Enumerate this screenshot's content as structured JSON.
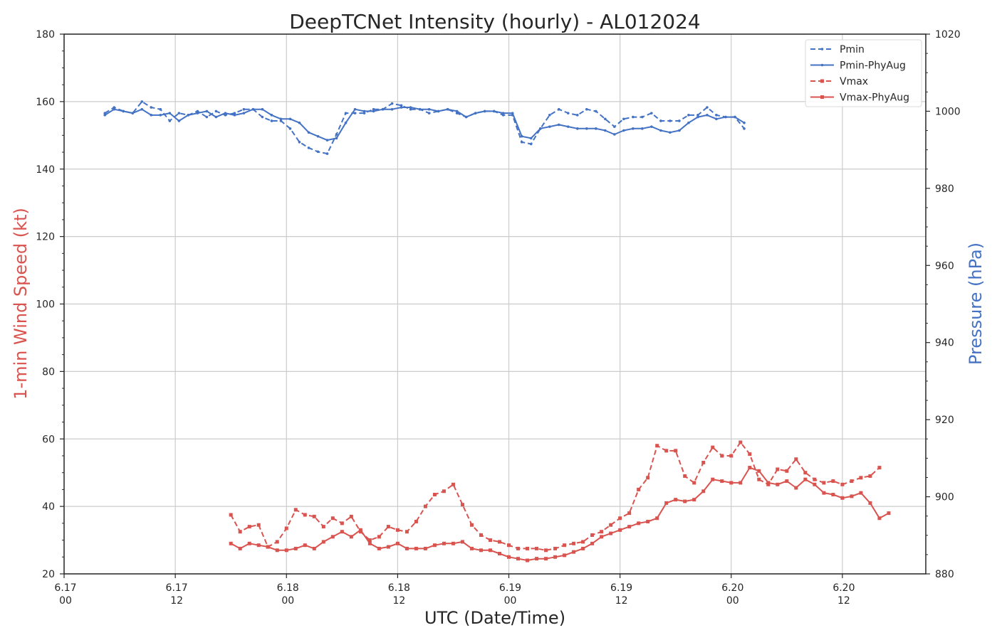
{
  "chart_data": {
    "type": "line",
    "title": "DeepTCNet Intensity (hourly) - AL012024",
    "xlabel": "UTC (Date/Time)",
    "ylabel_left": "1-min Wind Speed (kt)",
    "ylabel_right": "Pressure (hPa)",
    "xlim_hours": [
      0,
      93
    ],
    "ylim_left": [
      20,
      180
    ],
    "ylim_right": [
      880,
      1020
    ],
    "x_ticks": [
      {
        "hour": 0,
        "date": "6.17",
        "time": "00"
      },
      {
        "hour": 12,
        "date": "6.17",
        "time": "12"
      },
      {
        "hour": 24,
        "date": "6.18",
        "time": "00"
      },
      {
        "hour": 36,
        "date": "6.18",
        "time": "12"
      },
      {
        "hour": 48,
        "date": "6.19",
        "time": "00"
      },
      {
        "hour": 60,
        "date": "6.19",
        "time": "12"
      },
      {
        "hour": 72,
        "date": "6.20",
        "time": "00"
      },
      {
        "hour": 84,
        "date": "6.20",
        "time": "12"
      }
    ],
    "y_ticks_left": [
      20,
      40,
      60,
      80,
      100,
      120,
      140,
      160,
      180
    ],
    "y_ticks_right": [
      880,
      900,
      920,
      940,
      960,
      980,
      1000,
      1020
    ],
    "grid": true,
    "legend_position": "top-right",
    "colors": {
      "pressure": "#4472c4",
      "wind": "#d9534f"
    },
    "series": [
      {
        "name": "Pmin",
        "axis": "right",
        "style": "dashed",
        "marker": "dot",
        "color": "#4472c4",
        "x_start": 4.4,
        "values": [
          999.5,
          1001,
          1000,
          999.5,
          1002.5,
          1001,
          1000.5,
          997.5,
          999.5,
          999,
          1000,
          998.5,
          1000,
          999,
          999.5,
          1000.5,
          1000.5,
          998.5,
          997.5,
          997.5,
          995.5,
          992,
          990.5,
          989.5,
          989,
          994,
          999.5,
          999.5,
          999.5,
          1000.5,
          1000.5,
          1002,
          1001.5,
          1000.5,
          1000.5,
          999.5,
          1000,
          1000.5,
          999.5,
          998.5,
          999.5,
          1000,
          1000,
          999,
          999,
          992,
          991.5,
          995.5,
          999,
          1000.5,
          999.5,
          999,
          1000.5,
          1000,
          998,
          996,
          998,
          998.5,
          998.5,
          999.5,
          997.5,
          997.5,
          997.5,
          999,
          999,
          1001,
          999,
          998.5,
          998.5,
          995.5
        ]
      },
      {
        "name": "Pmin-PhyAug",
        "axis": "right",
        "style": "solid",
        "marker": "dot",
        "color": "#4472c4",
        "x_start": 4.4,
        "values": [
          999,
          1000.5,
          1000,
          999.5,
          1000.5,
          999,
          999,
          999.5,
          997.5,
          999,
          999.5,
          1000,
          998.5,
          999.5,
          999,
          999.5,
          1000.5,
          1000.5,
          999,
          998,
          998,
          997,
          994.5,
          993.5,
          992.5,
          993,
          997,
          1000.5,
          1000,
          1000,
          1000.5,
          1000.5,
          1001,
          1001,
          1000.5,
          1000.5,
          1000,
          1000.5,
          1000,
          998.5,
          999.5,
          1000,
          1000,
          999.5,
          999.5,
          993.5,
          993,
          995.5,
          996,
          996.5,
          996,
          995.5,
          995.5,
          995.5,
          995,
          994,
          995,
          995.5,
          995.5,
          996,
          995,
          994.5,
          995,
          997,
          998.5,
          999,
          998,
          998.5,
          998.5,
          997
        ]
      },
      {
        "name": "Vmax",
        "axis": "left",
        "style": "dashed",
        "marker": "square",
        "color": "#d9534f",
        "x_start": 18.0,
        "values": [
          37.5,
          32.5,
          34,
          34.5,
          28,
          29.5,
          33.5,
          39,
          37.5,
          37,
          34,
          36.5,
          35,
          37,
          32.5,
          30,
          31,
          34,
          33,
          32.5,
          35.5,
          40,
          43.5,
          44.5,
          46.5,
          40.5,
          34.5,
          31.5,
          30,
          29.5,
          28.5,
          27.5,
          27.5,
          27.5,
          27,
          27.5,
          28.5,
          29,
          29.5,
          31.5,
          32.5,
          34.5,
          36.5,
          38,
          45,
          48.5,
          58,
          56.5,
          56.5,
          49,
          47,
          53,
          57.5,
          55,
          55,
          59,
          55.5,
          48,
          46.5,
          51,
          50.5,
          54,
          50,
          48,
          47,
          47.5,
          46.5,
          47.5,
          48.5,
          49,
          51.5
        ]
      },
      {
        "name": "Vmax-PhyAug",
        "axis": "left",
        "style": "solid",
        "marker": "square",
        "color": "#d9534f",
        "x_start": 18.0,
        "values": [
          29,
          27.5,
          29,
          28.5,
          28,
          27,
          27,
          27.5,
          28.5,
          27.5,
          29.5,
          31,
          32.5,
          31,
          33,
          29,
          27.5,
          28,
          29,
          27.5,
          27.5,
          27.5,
          28.5,
          29,
          29,
          29.5,
          27.5,
          27,
          27,
          26,
          25,
          24.5,
          24,
          24.5,
          24.5,
          25,
          25.5,
          26.5,
          27.5,
          29,
          31,
          32,
          33,
          34,
          35,
          35.5,
          36.5,
          41,
          42,
          41.5,
          42,
          44.5,
          48,
          47.5,
          47,
          47,
          51.5,
          50.5,
          47,
          46.5,
          47.5,
          45.5,
          48,
          46.5,
          44,
          43.5,
          42.5,
          43,
          44,
          41,
          36.5,
          38
        ]
      }
    ]
  }
}
